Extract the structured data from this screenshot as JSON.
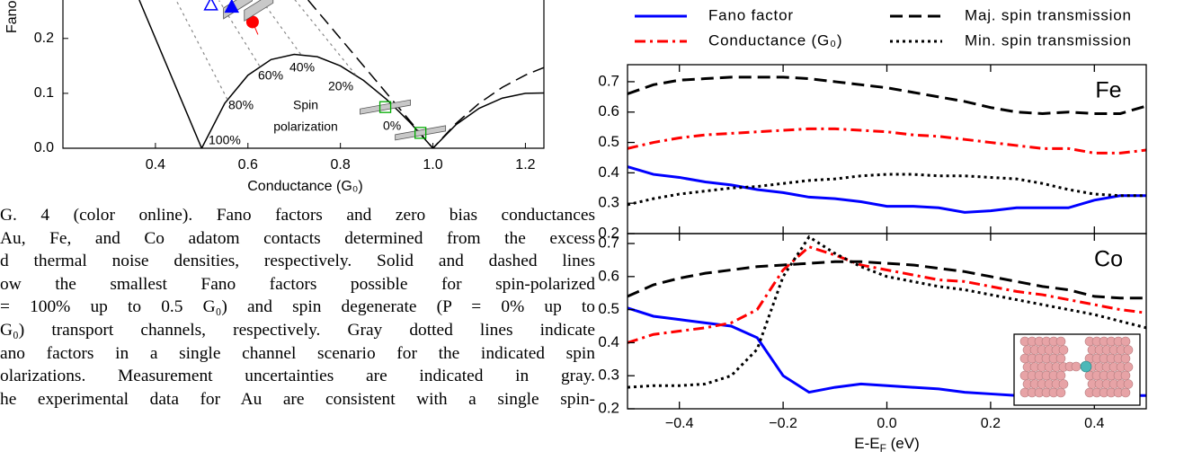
{
  "chart_data": [
    {
      "type": "line",
      "ylabel": "Fano",
      "xlabel": "Conductance (G₀)",
      "xlim": [
        0.2,
        1.24
      ],
      "ylim": [
        0,
        0.27
      ],
      "xticks": [
        0.4,
        0.6,
        0.8,
        {
          "value": 1,
          "label": "1.0"
        },
        1.2
      ],
      "yticks": [
        {
          "value": 0,
          "label": "0.0"
        },
        0.1,
        0.2
      ],
      "series": [
        {
          "style": "solid",
          "color": "#000000",
          "x": [
            0.365,
            0.5,
            0.55,
            0.6,
            0.65,
            0.7,
            0.75,
            0.8,
            0.85,
            0.9,
            0.95,
            1.0,
            1.05,
            1.1,
            1.15,
            1.2,
            1.24
          ],
          "values": [
            0.27,
            0,
            0.082,
            0.133,
            0.1615,
            0.171,
            0.1667,
            0.15,
            0.1235,
            0.0889,
            0.0474,
            0,
            0.043,
            0.0727,
            0.0913,
            0.1,
            0.1006
          ]
        },
        {
          "style": "dashed",
          "color": "#000000",
          "x": [
            0.73,
            1.0,
            1.05,
            1.1,
            1.15,
            1.2,
            1.24
          ],
          "values": [
            0.27,
            0,
            0.0452,
            0.0818,
            0.1109,
            0.1333,
            0.147
          ]
        },
        {
          "style": "dotted",
          "color": "#888888",
          "x": [
            0.5556,
            0.5,
            0.444
          ],
          "values": [
            0.0889,
            0.18,
            0.271
          ]
        },
        {
          "style": "dotted",
          "color": "#888888",
          "x": [
            0.625,
            0.581,
            0.5375
          ],
          "values": [
            0.15,
            0.2095,
            0.269
          ]
        },
        {
          "style": "dotted",
          "color": "#888888",
          "x": [
            0.714,
            0.664,
            0.6286
          ],
          "values": [
            0.1714,
            0.2294,
            0.2709
          ]
        },
        {
          "style": "dotted",
          "color": "#888888",
          "x": [
            0.8333,
            0.75,
            0.7
          ],
          "values": [
            0.1333,
            0.22,
            0.272
          ]
        },
        {
          "marker": "circle",
          "color": "#ff0000",
          "x": [
            0.61
          ],
          "values": [
            0.23
          ]
        },
        {
          "marker": "triangle",
          "color": "#0000ff",
          "x": [
            0.52,
            0.565
          ],
          "values": [
            0.262,
            0.258
          ]
        },
        {
          "marker": "square",
          "color": "#00aa00",
          "x": [
            0.897,
            0.973
          ],
          "values": [
            0.075,
            0.028
          ]
        }
      ],
      "annotations": [
        "100%",
        "80%",
        "60%",
        "40%",
        "20%",
        "0%",
        "Spin",
        "polarization"
      ]
    },
    {
      "type": "line",
      "annotation": "Fe",
      "legend": "top",
      "xlim": [
        -0.5,
        0.5
      ],
      "ylim": [
        0.2,
        0.756
      ],
      "yticks": [
        0.2,
        0.3,
        0.4,
        0.5,
        0.6,
        0.7
      ],
      "x": [
        -0.5,
        -0.45,
        -0.4,
        -0.35,
        -0.3,
        -0.25,
        -0.2,
        -0.15,
        -0.1,
        -0.05,
        0,
        0.05,
        0.1,
        0.15,
        0.2,
        0.25,
        0.3,
        0.35,
        0.4,
        0.45,
        0.5
      ],
      "series": [
        {
          "name": "Fano factor",
          "color": "#0000ff",
          "style": "solid",
          "values": [
            0.42,
            0.395,
            0.385,
            0.37,
            0.36,
            0.345,
            0.335,
            0.32,
            0.315,
            0.305,
            0.29,
            0.29,
            0.285,
            0.27,
            0.275,
            0.285,
            0.285,
            0.285,
            0.31,
            0.325,
            0.325
          ]
        },
        {
          "name": "Conductance (G₀)",
          "color": "#ff0000",
          "style": "dashdot",
          "values": [
            0.48,
            0.5,
            0.515,
            0.525,
            0.53,
            0.535,
            0.54,
            0.545,
            0.545,
            0.54,
            0.535,
            0.525,
            0.52,
            0.51,
            0.5,
            0.49,
            0.48,
            0.48,
            0.465,
            0.465,
            0.475
          ]
        },
        {
          "name": "Maj. spin transmission",
          "color": "#000000",
          "style": "dashed",
          "values": [
            0.66,
            0.69,
            0.705,
            0.71,
            0.715,
            0.715,
            0.715,
            0.71,
            0.7,
            0.69,
            0.68,
            0.665,
            0.65,
            0.635,
            0.615,
            0.6,
            0.595,
            0.6,
            0.595,
            0.595,
            0.62
          ]
        },
        {
          "name": "Min. spin transmission",
          "color": "#000000",
          "style": "dotted",
          "values": [
            0.295,
            0.315,
            0.33,
            0.34,
            0.35,
            0.355,
            0.365,
            0.375,
            0.38,
            0.39,
            0.395,
            0.395,
            0.39,
            0.39,
            0.385,
            0.38,
            0.365,
            0.345,
            0.33,
            0.325,
            0.325
          ]
        }
      ]
    },
    {
      "type": "line",
      "annotation": "Co",
      "xlabel": "E-EF (eV)",
      "xlim": [
        -0.5,
        0.5
      ],
      "ylim": [
        0.2,
        0.73
      ],
      "yticks": [
        0.2,
        0.3,
        0.4,
        0.5,
        0.6,
        0.7
      ],
      "xticks": [
        {
          "value": -0.4,
          "label": "−0.4"
        },
        {
          "value": -0.2,
          "label": "−0.2"
        },
        {
          "value": 0,
          "label": "0.0"
        },
        0.2,
        0.4
      ],
      "x": [
        -0.5,
        -0.45,
        -0.4,
        -0.35,
        -0.3,
        -0.25,
        -0.2,
        -0.15,
        -0.1,
        -0.05,
        0,
        0.05,
        0.1,
        0.15,
        0.2,
        0.25,
        0.3,
        0.35,
        0.4,
        0.45,
        0.5
      ],
      "series": [
        {
          "color": "#0000ff",
          "style": "solid",
          "values": [
            0.505,
            0.48,
            0.47,
            0.46,
            0.45,
            0.415,
            0.3,
            0.25,
            0.265,
            0.275,
            0.27,
            0.265,
            0.26,
            0.25,
            0.245,
            0.24,
            0.24,
            0.24,
            0.24,
            0.24,
            0.24
          ]
        },
        {
          "color": "#ff0000",
          "style": "dashdot",
          "values": [
            0.4,
            0.425,
            0.435,
            0.445,
            0.46,
            0.5,
            0.62,
            0.69,
            0.665,
            0.635,
            0.62,
            0.605,
            0.59,
            0.585,
            0.57,
            0.555,
            0.545,
            0.53,
            0.515,
            0.5,
            0.49
          ]
        },
        {
          "color": "#000000",
          "style": "dashed",
          "values": [
            0.54,
            0.575,
            0.595,
            0.61,
            0.62,
            0.63,
            0.635,
            0.64,
            0.645,
            0.645,
            0.64,
            0.635,
            0.625,
            0.615,
            0.6,
            0.585,
            0.57,
            0.56,
            0.54,
            0.535,
            0.535
          ]
        },
        {
          "color": "#000000",
          "style": "dotted",
          "values": [
            0.265,
            0.27,
            0.27,
            0.275,
            0.3,
            0.38,
            0.6,
            0.72,
            0.67,
            0.63,
            0.6,
            0.585,
            0.57,
            0.56,
            0.545,
            0.53,
            0.515,
            0.5,
            0.485,
            0.465,
            0.445
          ]
        }
      ]
    }
  ],
  "caption": [
    "G. 4 (color online).    Fano factors and zero bias conductances",
    "Au, Fe, and Co adatom contacts determined from the excess",
    "d thermal noise densities, respectively. Solid and dashed lines",
    "ow the smallest Fano factors possible for spin-polarized",
    "= 100% up to 0.5 G₀) and spin degenerate (P = 0% up to",
    "G₀) transport channels, respectively. Gray dotted lines indicate",
    "ano factors in a single channel scenario for the indicated spin",
    "olarizations. Measurement uncertainties are indicated in gray.",
    "he experimental data for Au are consistent with a single spin-"
  ]
}
